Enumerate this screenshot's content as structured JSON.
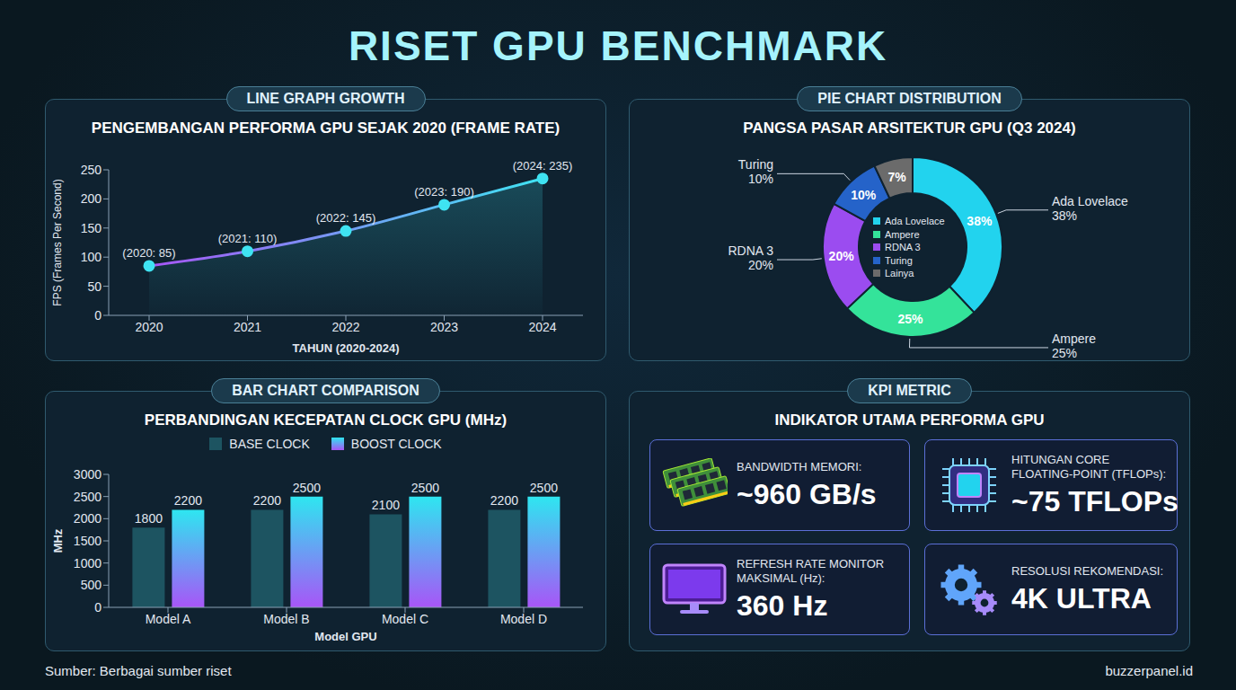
{
  "title": "RISET GPU BENCHMARK",
  "chart_data": [
    {
      "type": "line",
      "badge": "LINE GRAPH GROWTH",
      "title": "PENGEMBANGAN PERFORMA GPU SEJAK 2020 (FRAME RATE)",
      "x_label": "TAHUN (2020-2024)",
      "y_label": "FPS (Frames Per Second)",
      "categories": [
        "2020",
        "2021",
        "2022",
        "2023",
        "2024"
      ],
      "values": [
        85,
        110,
        145,
        190,
        235
      ],
      "value_labels": [
        "(2020: 85)",
        "(2021: 110)",
        "(2022: 145)",
        "(2023: 190)",
        "(2024: 235)"
      ],
      "data_labels": true,
      "color": "#3fe3f2",
      "marker": "circle",
      "ylim": [
        0,
        250
      ],
      "yticks": [
        0,
        50,
        100,
        150,
        200,
        250
      ],
      "grid": false
    },
    {
      "type": "pie",
      "badge": "PIE CHART DISTRIBUTION",
      "title": "PANGSA PASAR ARSITEKTUR GPU (Q3 2024)",
      "categories": [
        "Ada Lovelace",
        "Ampere",
        "RDNA 3",
        "Turing",
        "Lainya"
      ],
      "values": [
        38,
        25,
        20,
        10,
        7
      ],
      "value_labels": [
        "38%",
        "25%",
        "20%",
        "10%",
        "7%"
      ],
      "colors": [
        "#22d3ee",
        "#34e39a",
        "#9b4cf0",
        "#2563c9",
        "#6b6b6b"
      ],
      "data_labels": true,
      "legend": "center",
      "annotations": [
        {
          "text": "Ada Lovelace",
          "subtext": "38%"
        },
        {
          "text": "Ampere",
          "subtext": "25%"
        },
        {
          "text": "RDNA 3",
          "subtext": "20%"
        },
        {
          "text": "Turing",
          "subtext": "10%"
        }
      ]
    },
    {
      "type": "bar",
      "badge": "BAR CHART COMPARISON",
      "title": "PERBANDINGAN KECEPATAN CLOCK GPU (MHz)",
      "x_label": "Model GPU",
      "y_label": "MHz",
      "categories": [
        "Model A",
        "Model B",
        "Model C",
        "Model D"
      ],
      "series": [
        {
          "name": "BASE CLOCK",
          "color": "#1d5461",
          "values": [
            1800,
            2200,
            2100,
            2200
          ]
        },
        {
          "name": "BOOST CLOCK",
          "color": "#2ee6f0",
          "values": [
            2200,
            2500,
            2500,
            2500
          ]
        }
      ],
      "ylim": [
        0,
        3000
      ],
      "yticks": [
        0,
        500,
        1000,
        1500,
        2000,
        2500,
        3000
      ],
      "data_labels": true,
      "legend": "top",
      "grid": false
    }
  ],
  "kpi": {
    "badge": "KPI METRIC",
    "title": "INDIKATOR UTAMA PERFORMA GPU",
    "items": [
      {
        "label": "BANDWIDTH MEMORI:",
        "value": "~960 GB/s"
      },
      {
        "label": "HITUNGAN CORE FLOATING-POINT (TFLOPs):",
        "value": "~75 TFLOPs"
      },
      {
        "label": "REFRESH RATE MONITOR MAKSIMAL (Hz):",
        "value": "360 Hz"
      },
      {
        "label": "RESOLUSI REKOMENDASI:",
        "value": "4K ULTRA"
      }
    ]
  },
  "source": "Sumber: Berbagai sumber riset",
  "site": "buzzerpanel.id"
}
